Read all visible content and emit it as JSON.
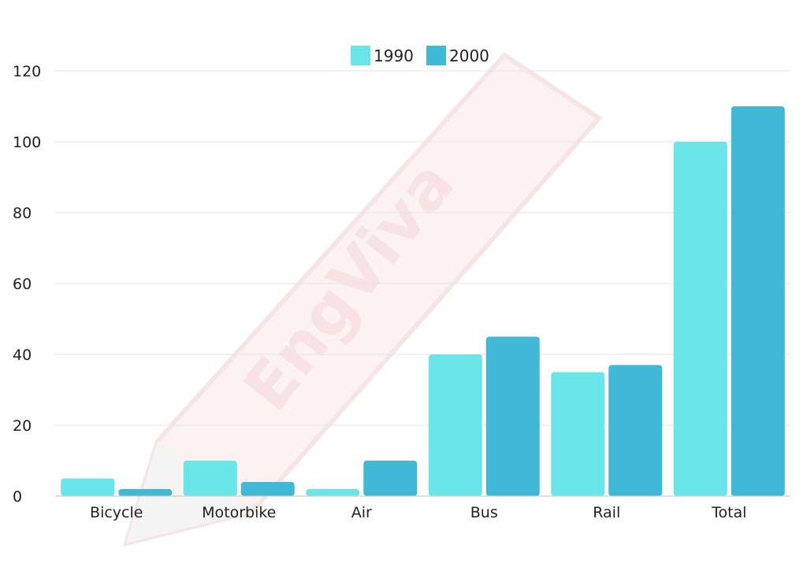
{
  "watermark": {
    "text": "EngViva"
  },
  "chart_data": {
    "type": "bar",
    "categories": [
      "Bicycle",
      "Motorbike",
      "Air",
      "Bus",
      "Rail",
      "Total"
    ],
    "series": [
      {
        "name": "1990",
        "values": [
          5,
          10,
          2,
          40,
          35,
          100
        ]
      },
      {
        "name": "2000",
        "values": [
          2,
          4,
          10,
          45,
          37,
          110
        ]
      }
    ],
    "ylim": [
      0,
      120
    ],
    "yticks": [
      0,
      20,
      40,
      60,
      80,
      100,
      120
    ],
    "title": "",
    "xlabel": "",
    "ylabel": "",
    "grid": true,
    "legend_position": "top-center",
    "colors": {
      "1990": "#6ce5e8",
      "2000": "#41b8d5"
    }
  }
}
